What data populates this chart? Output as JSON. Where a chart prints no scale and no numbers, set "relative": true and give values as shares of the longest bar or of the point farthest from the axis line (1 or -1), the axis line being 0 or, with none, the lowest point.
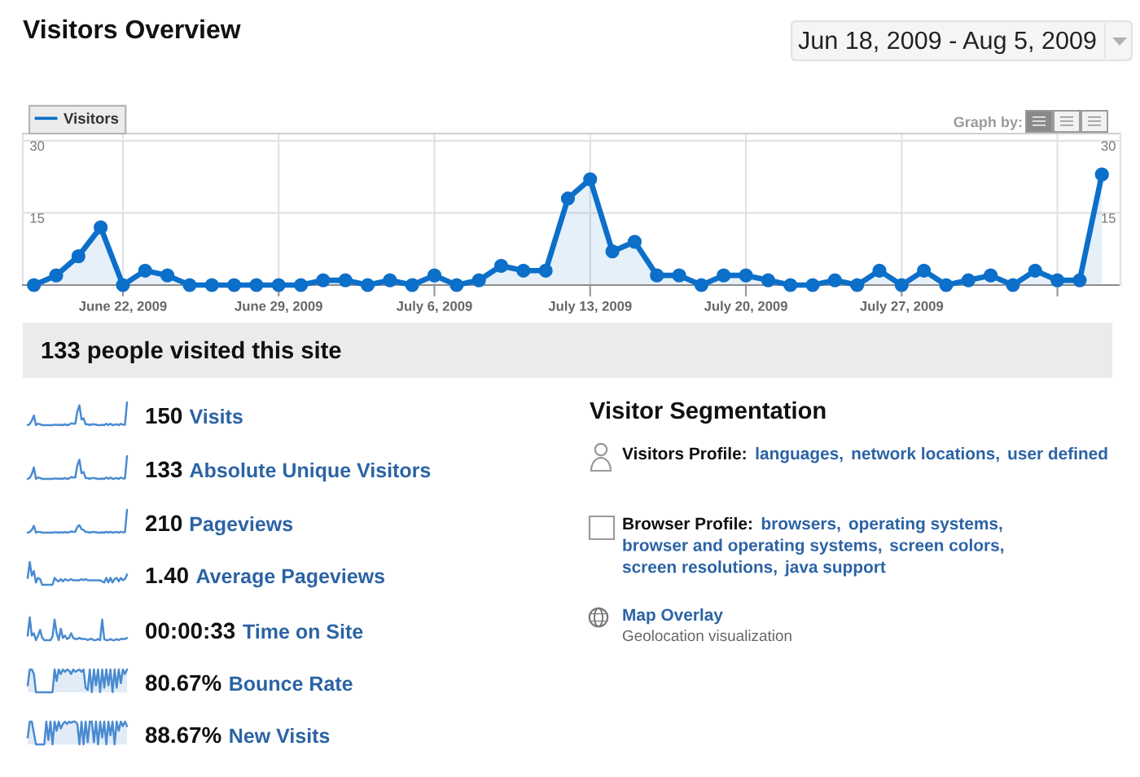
{
  "chart_data": [
    {
      "type": "area",
      "title": "Visitors Overview",
      "subtitle": "Jun 18, 2009 - Aug 5, 2009",
      "annotations": [
        "Graph by:"
      ],
      "x": [
        "2009-06-18",
        "2009-06-19",
        "2009-06-20",
        "2009-06-21",
        "2009-06-22",
        "2009-06-23",
        "2009-06-24",
        "2009-06-25",
        "2009-06-26",
        "2009-06-27",
        "2009-06-28",
        "2009-06-29",
        "2009-06-30",
        "2009-07-01",
        "2009-07-02",
        "2009-07-03",
        "2009-07-04",
        "2009-07-05",
        "2009-07-06",
        "2009-07-07",
        "2009-07-08",
        "2009-07-09",
        "2009-07-10",
        "2009-07-11",
        "2009-07-12",
        "2009-07-13",
        "2009-07-14",
        "2009-07-15",
        "2009-07-16",
        "2009-07-17",
        "2009-07-18",
        "2009-07-19",
        "2009-07-20",
        "2009-07-21",
        "2009-07-22",
        "2009-07-23",
        "2009-07-24",
        "2009-07-25",
        "2009-07-26",
        "2009-07-27",
        "2009-07-28",
        "2009-07-29",
        "2009-07-30",
        "2009-07-31",
        "2009-08-01",
        "2009-08-02",
        "2009-08-03",
        "2009-08-04",
        "2009-08-05"
      ],
      "series": [
        {
          "name": "Visitors",
          "color": "#0c6fc9",
          "values": [
            0,
            2,
            6,
            12,
            0,
            3,
            2,
            0,
            0,
            0,
            0,
            0,
            0,
            1,
            1,
            0,
            1,
            0,
            2,
            0,
            1,
            4,
            3,
            3,
            18,
            22,
            7,
            9,
            2,
            2,
            0,
            2,
            2,
            1,
            0,
            0,
            1,
            0,
            3,
            0,
            3,
            0,
            1,
            2,
            0,
            3,
            1,
            1,
            23
          ]
        }
      ],
      "xlim": [
        "2009-06-17T12:00",
        "2009-08-05T20:00"
      ],
      "xticks": [
        {
          "value": "2009-06-22",
          "label": "June 22, 2009"
        },
        {
          "value": "2009-06-29",
          "label": "June 29, 2009"
        },
        {
          "value": "2009-07-06",
          "label": "July 6, 2009"
        },
        {
          "value": "2009-07-13",
          "label": "July 13, 2009"
        },
        {
          "value": "2009-07-20",
          "label": "July 20, 2009"
        },
        {
          "value": "2009-07-27",
          "label": "July 27, 2009"
        },
        {
          "value": "2009-08-03",
          "label": null
        }
      ],
      "ylim": [
        0,
        31.5
      ],
      "yticks": [
        15,
        30
      ],
      "y2lim": [
        0,
        31.5
      ],
      "y2ticks": [
        15,
        30
      ],
      "grid": true,
      "legend": "top left",
      "marker": "circle"
    },
    {
      "type": "other",
      "title": "133 people visited this site"
    },
    {
      "type": "line",
      "annotations": [
        "150",
        "Visits"
      ],
      "relative": true,
      "color": "#4a8bd0",
      "categories": [
        null,
        null,
        null,
        null,
        null,
        null,
        null,
        null,
        null,
        null,
        null,
        null,
        null,
        null,
        null,
        null,
        null,
        null,
        null,
        null,
        null,
        null,
        null,
        null,
        null,
        null,
        null,
        null,
        null,
        null,
        null,
        null,
        null,
        null,
        null,
        null,
        null,
        null,
        null,
        null,
        null,
        null,
        null,
        null,
        null,
        null,
        null,
        null,
        null
      ],
      "values": [
        0,
        0.05,
        0.2,
        0.42,
        0,
        0.06,
        0.04,
        0,
        0,
        0,
        0,
        0,
        0,
        0.02,
        0.02,
        0,
        0.02,
        0,
        0.04,
        0,
        0.02,
        0.08,
        0.06,
        0.06,
        0.6,
        0.87,
        0.25,
        0.3,
        0.04,
        0.04,
        0,
        0.04,
        0.04,
        0.02,
        0,
        0,
        0.02,
        0,
        0.06,
        0,
        0.06,
        0,
        0.02,
        0.04,
        0,
        0.06,
        0.02,
        0.02,
        1
      ]
    },
    {
      "type": "line",
      "annotations": [
        "133",
        "Absolute Unique Visitors"
      ],
      "relative": true,
      "color": "#4a8bd0",
      "categories": [
        null,
        null,
        null,
        null,
        null,
        null,
        null,
        null,
        null,
        null,
        null,
        null,
        null,
        null,
        null,
        null,
        null,
        null,
        null,
        null,
        null,
        null,
        null,
        null,
        null,
        null,
        null,
        null,
        null,
        null,
        null,
        null,
        null,
        null,
        null,
        null,
        null,
        null,
        null,
        null,
        null,
        null,
        null,
        null,
        null,
        null,
        null,
        null,
        null
      ],
      "values": [
        0,
        0.05,
        0.22,
        0.5,
        0,
        0.06,
        0.04,
        0,
        0,
        0,
        0,
        0,
        0,
        0.02,
        0.02,
        0,
        0.02,
        0,
        0.04,
        0,
        0.02,
        0.08,
        0.06,
        0.06,
        0.6,
        0.84,
        0.25,
        0.3,
        0.04,
        0.04,
        0,
        0.04,
        0.04,
        0.02,
        0,
        0,
        0.02,
        0,
        0.06,
        0,
        0.06,
        0,
        0.02,
        0.04,
        0,
        0.06,
        0.02,
        0.02,
        1
      ]
    },
    {
      "type": "line",
      "annotations": [
        "210",
        "Pageviews"
      ],
      "relative": true,
      "color": "#4a8bd0",
      "categories": [
        null,
        null,
        null,
        null,
        null,
        null,
        null,
        null,
        null,
        null,
        null,
        null,
        null,
        null,
        null,
        null,
        null,
        null,
        null,
        null,
        null,
        null,
        null,
        null,
        null,
        null,
        null,
        null,
        null,
        null,
        null,
        null,
        null,
        null,
        null,
        null,
        null,
        null,
        null,
        null,
        null,
        null,
        null,
        null,
        null,
        null,
        null,
        null,
        null
      ],
      "values": [
        0,
        0.03,
        0.12,
        0.3,
        0,
        0.04,
        0.03,
        0,
        0,
        0,
        0,
        0,
        0,
        0.02,
        0.02,
        0,
        0.02,
        0,
        0.03,
        0,
        0.02,
        0.05,
        0.04,
        0.04,
        0.25,
        0.33,
        0.15,
        0.12,
        0.03,
        0.03,
        0,
        0.03,
        0.03,
        0.02,
        0,
        0,
        0.02,
        0,
        0.04,
        0,
        0.04,
        0,
        0.02,
        0.03,
        0,
        0.04,
        0.02,
        0.02,
        1
      ]
    },
    {
      "type": "line",
      "annotations": [
        "1.40",
        "Average Pageviews"
      ],
      "relative": true,
      "color": "#4a8bd0",
      "categories": [
        null,
        null,
        null,
        null,
        null,
        null,
        null,
        null,
        null,
        null,
        null,
        null,
        null,
        null,
        null,
        null,
        null,
        null,
        null,
        null,
        null,
        null,
        null,
        null,
        null,
        null,
        null,
        null,
        null,
        null,
        null,
        null,
        null,
        null,
        null,
        null,
        null,
        null,
        null,
        null,
        null,
        null,
        null,
        null,
        null,
        null,
        null,
        null,
        null
      ],
      "values": [
        0.3,
        1,
        0.4,
        0.6,
        0.1,
        0.3,
        0.25,
        0,
        0,
        0,
        0,
        0,
        0,
        0.3,
        0.2,
        0.15,
        0.25,
        0.15,
        0.25,
        0.2,
        0.2,
        0.25,
        0.2,
        0.2,
        0.2,
        0.2,
        0.25,
        0.2,
        0.25,
        0.2,
        0.2,
        0.2,
        0.2,
        0.2,
        0.2,
        0.2,
        0.15,
        0.1,
        0.3,
        0.1,
        0.3,
        0.1,
        0.25,
        0.3,
        0.15,
        0.3,
        0.2,
        0.25,
        0.45
      ]
    },
    {
      "type": "line",
      "annotations": [
        "00:00:33",
        "Time on Site"
      ],
      "relative": true,
      "color": "#4a8bd0",
      "categories": [
        null,
        null,
        null,
        null,
        null,
        null,
        null,
        null,
        null,
        null,
        null,
        null,
        null,
        null,
        null,
        null,
        null,
        null,
        null,
        null,
        null,
        null,
        null,
        null,
        null,
        null,
        null,
        null,
        null,
        null,
        null,
        null,
        null,
        null,
        null,
        null,
        null,
        null,
        null,
        null,
        null,
        null,
        null,
        null,
        null,
        null,
        null,
        null,
        null
      ],
      "values": [
        0.2,
        1,
        0.2,
        0.3,
        0,
        0.2,
        0.45,
        0.1,
        0,
        0,
        0,
        0,
        0.15,
        0.9,
        0.3,
        0,
        0.5,
        0.1,
        0.2,
        0.05,
        0.1,
        0.3,
        0.1,
        0.05,
        0.05,
        0.1,
        0.05,
        0.05,
        0.05,
        0,
        0.05,
        0.05,
        0,
        0,
        0.05,
        0,
        0.9,
        0.05,
        0,
        0,
        0.05,
        0,
        0,
        0.05,
        0,
        0.05,
        0.05,
        0.05,
        0.1
      ]
    },
    {
      "type": "area",
      "annotations": [
        "80.67%",
        "Bounce Rate"
      ],
      "relative": true,
      "color": "#4a8bd0",
      "categories": [
        null,
        null,
        null,
        null,
        null,
        null,
        null,
        null,
        null,
        null,
        null,
        null,
        null,
        null,
        null,
        null,
        null,
        null,
        null,
        null,
        null,
        null,
        null,
        null,
        null,
        null,
        null,
        null,
        null,
        null,
        null,
        null,
        null,
        null,
        null,
        null,
        null,
        null,
        null,
        null,
        null,
        null,
        null,
        null,
        null,
        null,
        null,
        null,
        null
      ],
      "values": [
        0.3,
        1,
        1,
        0.8,
        0,
        0,
        0,
        0,
        0,
        0,
        0,
        0,
        0,
        1,
        0.5,
        1,
        0.8,
        1,
        0.9,
        1,
        0.95,
        0.8,
        1,
        0.9,
        0.95,
        1,
        0.9,
        1,
        0.2,
        0.1,
        1,
        0,
        1,
        0.3,
        1,
        0,
        1,
        0.2,
        1,
        0.3,
        1,
        0,
        1,
        0.2,
        1,
        0.4,
        1,
        0.8,
        1
      ]
    },
    {
      "type": "area",
      "annotations": [
        "88.67%",
        "New Visits"
      ],
      "relative": true,
      "color": "#4a8bd0",
      "categories": [
        null,
        null,
        null,
        null,
        null,
        null,
        null,
        null,
        null,
        null,
        null,
        null,
        null,
        null,
        null,
        null,
        null,
        null,
        null,
        null,
        null,
        null,
        null,
        null,
        null,
        null,
        null,
        null,
        null,
        null,
        null,
        null,
        null,
        null,
        null,
        null,
        null,
        null,
        null,
        null,
        null,
        null,
        null,
        null,
        null,
        null,
        null,
        null,
        null
      ],
      "values": [
        0.3,
        1,
        1,
        0.5,
        0,
        0,
        0,
        0,
        0,
        1,
        0.2,
        1,
        0,
        1,
        0.6,
        1,
        0.7,
        0.9,
        1,
        0.9,
        1,
        0.95,
        1,
        1,
        0.9,
        0,
        1,
        0,
        1,
        0.1,
        1,
        1,
        0.1,
        1,
        0,
        1,
        0.3,
        1,
        0,
        1,
        0.4,
        1,
        0,
        1,
        0.6,
        1,
        0.8,
        1,
        0.8
      ]
    },
    {
      "type": "other",
      "title": "Visitor Segmentation"
    },
    {
      "type": "other",
      "title": "Visitors Profile:",
      "annotations": [
        "languages,",
        "network locations,",
        "user defined"
      ]
    },
    {
      "type": "other",
      "title": "Browser Profile:",
      "annotations": [
        "browsers,",
        "operating systems,",
        "browser and operating systems,",
        "screen colors,",
        "screen resolutions,",
        "java support"
      ]
    },
    {
      "type": "other",
      "title": "Map Overlay",
      "annotations": [
        "Geolocation visualization"
      ]
    }
  ]
}
